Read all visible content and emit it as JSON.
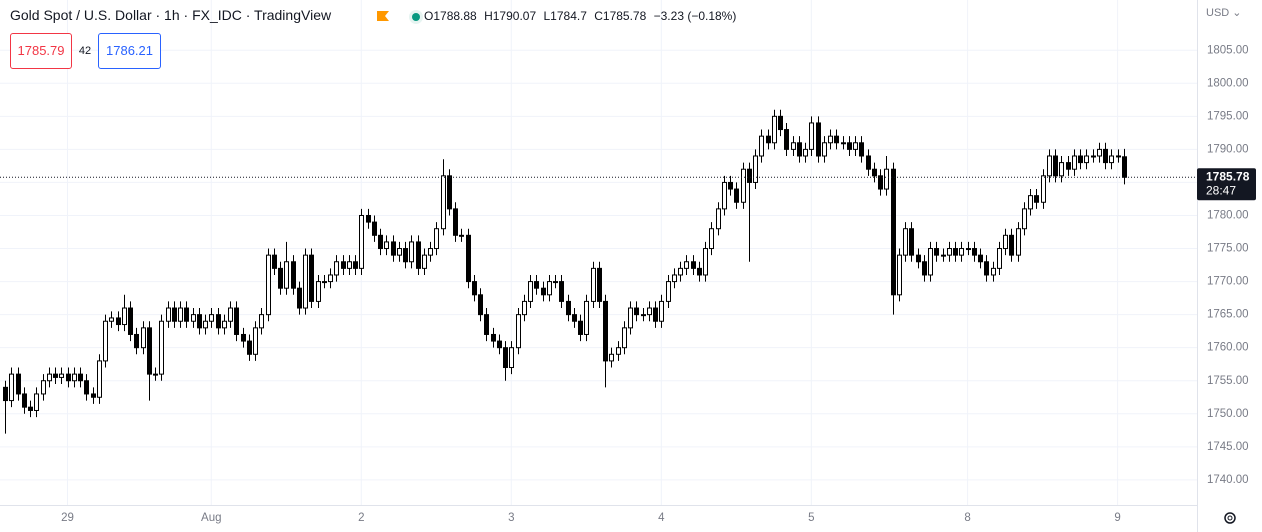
{
  "chart_data": {
    "type": "candlestick",
    "title": "Gold Spot / U.S. Dollar · 1h · FX_IDC · TradingView",
    "legend_labels": [
      "O",
      "H",
      "L",
      "C"
    ],
    "change_label": "−3.23 (−0.18%)",
    "bid": 1785.79,
    "spread": 42,
    "ask": 1786.21,
    "currency": "USD",
    "countdown": "28:47",
    "up_color": "#ffffff",
    "down_color": "#000000",
    "wick_color": "#000000",
    "grid": true,
    "ylim": [
      1736.2,
      1812.6
    ],
    "yticks": [
      {
        "value": 1740,
        "label": "1740.00"
      },
      {
        "value": 1745,
        "label": "1745.00"
      },
      {
        "value": 1750,
        "label": "1750.00"
      },
      {
        "value": 1755,
        "label": "1755.00"
      },
      {
        "value": 1760,
        "label": "1760.00"
      },
      {
        "value": 1765,
        "label": "1765.00"
      },
      {
        "value": 1770,
        "label": "1770.00"
      },
      {
        "value": 1775,
        "label": "1775.00"
      },
      {
        "value": 1780,
        "label": "1780.00"
      },
      {
        "value": 1785,
        "label": "1785.00"
      },
      {
        "value": 1790,
        "label": "1790.00"
      },
      {
        "value": 1795,
        "label": "1795.00"
      },
      {
        "value": 1800,
        "label": "1800.00"
      },
      {
        "value": 1805,
        "label": "1805.00"
      }
    ],
    "xlim": [
      -0.8,
      190.7
    ],
    "xticks": [
      {
        "value": 10,
        "label": "29"
      },
      {
        "value": 33,
        "label": "Aug"
      },
      {
        "value": 57,
        "label": "2"
      },
      {
        "value": 81,
        "label": "3"
      },
      {
        "value": 105,
        "label": "4"
      },
      {
        "value": 129,
        "label": "5"
      },
      {
        "value": 154,
        "label": "8"
      },
      {
        "value": 178,
        "label": "9"
      }
    ],
    "open": [
      1754,
      1752,
      1756,
      1753,
      1751,
      1750.5,
      1753,
      1755,
      1756,
      1755.5,
      1756,
      1755,
      1756,
      1755,
      1753,
      1752.5,
      1758,
      1764,
      1764.5,
      1763.5,
      1766,
      1762,
      1760,
      1763,
      1756,
      1756,
      1764,
      1766,
      1764,
      1766,
      1764,
      1765,
      1763,
      1764,
      1765,
      1763,
      1764,
      1766,
      1762,
      1761,
      1759,
      1763,
      1765,
      1774,
      1772,
      1769,
      1773,
      1769,
      1766,
      1774,
      1767,
      1770,
      1770,
      1771,
      1773,
      1772,
      1773,
      1772,
      1780,
      1779,
      1777,
      1775,
      1776,
      1774,
      1775,
      1773,
      1776,
      1772,
      1774,
      1775,
      1778,
      1786,
      1781,
      1777,
      1777,
      1770,
      1768,
      1765,
      1762,
      1761,
      1760,
      1757,
      1760,
      1765,
      1767,
      1770,
      1769,
      1768,
      1770,
      1770,
      1767,
      1765,
      1764,
      1762,
      1767,
      1772,
      1767,
      1758,
      1759,
      1760,
      1763,
      1766,
      1765,
      1765,
      1766,
      1764,
      1767,
      1770,
      1771,
      1772,
      1773,
      1772,
      1771,
      1775,
      1778,
      1781,
      1785,
      1784,
      1782,
      1787,
      1785,
      1789,
      1792,
      1791,
      1795,
      1793,
      1790,
      1791,
      1789,
      1790,
      1794,
      1789,
      1791,
      1792,
      1791,
      1791,
      1790,
      1791,
      1789,
      1787,
      1786,
      1784,
      1787,
      1768,
      1774,
      1778,
      1774,
      1773,
      1771,
      1775,
      1774,
      1774,
      1775,
      1774,
      1775,
      1775,
      1774,
      1773,
      1771,
      1772,
      1775,
      1777,
      1774,
      1778,
      1781,
      1783,
      1782,
      1786,
      1789,
      1786,
      1788,
      1787,
      1789,
      1788,
      1789,
      1789,
      1790,
      1788,
      1789,
      1788.88
    ],
    "high": [
      1755,
      1757,
      1757,
      1754,
      1752,
      1754,
      1756,
      1757,
      1757,
      1757,
      1757,
      1757,
      1757,
      1756,
      1754,
      1759,
      1765,
      1765.5,
      1765.5,
      1768,
      1767,
      1763,
      1764,
      1764,
      1757,
      1765,
      1767,
      1767,
      1767,
      1767,
      1766,
      1766,
      1765,
      1766,
      1766,
      1765,
      1767,
      1767,
      1763,
      1762,
      1764,
      1766,
      1775,
      1775,
      1773,
      1776,
      1774,
      1770,
      1775,
      1775,
      1771,
      1771,
      1772,
      1774,
      1774,
      1774,
      1774,
      1781,
      1781,
      1780,
      1778,
      1777,
      1777,
      1776,
      1776,
      1777,
      1777,
      1775,
      1776,
      1779,
      1788.5,
      1787,
      1782,
      1778,
      1778,
      1771,
      1769,
      1766,
      1763,
      1762,
      1761,
      1761,
      1766,
      1768,
      1771,
      1771,
      1770,
      1771,
      1771,
      1771,
      1768,
      1766,
      1765,
      1768,
      1773,
      1773,
      1768,
      1760,
      1761,
      1764,
      1767,
      1767,
      1766,
      1767,
      1767,
      1768,
      1771,
      1772,
      1773,
      1774,
      1774,
      1773,
      1776,
      1779,
      1782,
      1786,
      1786,
      1785,
      1788,
      1788,
      1790,
      1793,
      1793,
      1796,
      1796,
      1794,
      1792,
      1792,
      1791,
      1795,
      1795,
      1792,
      1793,
      1793,
      1792,
      1792,
      1792,
      1792,
      1790,
      1788,
      1787,
      1789,
      1788,
      1775,
      1779,
      1779,
      1775,
      1774,
      1776,
      1776,
      1775,
      1776,
      1776,
      1776,
      1776,
      1776,
      1775,
      1774,
      1773,
      1776,
      1778,
      1778,
      1779,
      1782,
      1784,
      1784,
      1787,
      1790,
      1790,
      1789,
      1789,
      1790,
      1790,
      1790,
      1790,
      1791,
      1791,
      1790,
      1790,
      1790.07
    ],
    "low": [
      1747,
      1751,
      1752,
      1750,
      1749.5,
      1749.5,
      1752,
      1754,
      1754.5,
      1754.5,
      1754,
      1754,
      1754,
      1752,
      1751.5,
      1751.5,
      1757,
      1763,
      1762.5,
      1762.5,
      1761,
      1759,
      1759,
      1752,
      1755,
      1755,
      1763,
      1763,
      1763,
      1763,
      1763,
      1762,
      1762,
      1763,
      1762,
      1762,
      1763,
      1761,
      1760,
      1758,
      1758,
      1762,
      1764,
      1771,
      1768,
      1768,
      1768,
      1765,
      1765,
      1766,
      1766,
      1769,
      1769,
      1770,
      1771,
      1771,
      1771,
      1771,
      1778,
      1776,
      1774,
      1774,
      1773,
      1773,
      1772,
      1772,
      1771,
      1771,
      1773,
      1774,
      1777,
      1780,
      1776,
      1776,
      1769,
      1767,
      1764,
      1761,
      1760,
      1759,
      1755,
      1756,
      1759,
      1764,
      1766,
      1768,
      1767,
      1767,
      1769,
      1766,
      1764,
      1763,
      1761,
      1761,
      1766,
      1766,
      1754,
      1757,
      1758,
      1759,
      1762,
      1764,
      1764,
      1764,
      1763,
      1763,
      1766,
      1769,
      1770,
      1771,
      1771,
      1770,
      1770,
      1774,
      1777,
      1780,
      1783,
      1781,
      1781,
      1773,
      1784,
      1788,
      1790,
      1790,
      1792,
      1789,
      1789,
      1788,
      1788,
      1789,
      1788,
      1788,
      1790,
      1790,
      1790,
      1789,
      1789,
      1788,
      1786,
      1785,
      1783,
      1783,
      1765,
      1767,
      1773,
      1773,
      1772,
      1770,
      1770,
      1773,
      1773,
      1773,
      1773,
      1773,
      1774,
      1773,
      1772,
      1770,
      1770,
      1771,
      1774,
      1773,
      1773,
      1777,
      1780,
      1781,
      1781,
      1785,
      1785,
      1785,
      1786,
      1786,
      1787,
      1787,
      1788,
      1788,
      1787,
      1787,
      1788,
      1784.7
    ],
    "close": [
      1752,
      1756,
      1753,
      1751,
      1750.5,
      1753,
      1755,
      1756,
      1755.5,
      1756,
      1755,
      1756,
      1755,
      1753,
      1752.5,
      1758,
      1764,
      1764.5,
      1763.5,
      1766,
      1762,
      1760,
      1763,
      1756,
      1756,
      1764,
      1766,
      1764,
      1766,
      1764,
      1765,
      1763,
      1764,
      1765,
      1763,
      1764,
      1766,
      1762,
      1761,
      1759,
      1763,
      1765,
      1774,
      1772,
      1769,
      1773,
      1769,
      1766,
      1774,
      1767,
      1770,
      1770,
      1771,
      1773,
      1772,
      1773,
      1772,
      1780,
      1779,
      1777,
      1775,
      1776,
      1774,
      1775,
      1773,
      1776,
      1772,
      1774,
      1775,
      1778,
      1786,
      1781,
      1777,
      1777,
      1770,
      1768,
      1765,
      1762,
      1761,
      1760,
      1757,
      1760,
      1765,
      1767,
      1770,
      1769,
      1768,
      1770,
      1770,
      1767,
      1765,
      1764,
      1762,
      1767,
      1772,
      1767,
      1758,
      1759,
      1760,
      1763,
      1766,
      1765,
      1765,
      1766,
      1764,
      1767,
      1770,
      1771,
      1772,
      1773,
      1772,
      1771,
      1775,
      1778,
      1781,
      1785,
      1784,
      1782,
      1787,
      1785,
      1789,
      1792,
      1791,
      1795,
      1793,
      1790,
      1791,
      1789,
      1790,
      1794,
      1789,
      1791,
      1792,
      1791,
      1791,
      1790,
      1791,
      1789,
      1787,
      1786,
      1784,
      1787,
      1768,
      1774,
      1778,
      1774,
      1773,
      1771,
      1775,
      1774,
      1774,
      1775,
      1774,
      1775,
      1775,
      1774,
      1773,
      1771,
      1772,
      1775,
      1777,
      1774,
      1778,
      1781,
      1783,
      1782,
      1786,
      1789,
      1786,
      1788,
      1787,
      1789,
      1788,
      1789,
      1789,
      1790,
      1788,
      1789,
      1789.01,
      1785.78
    ]
  }
}
